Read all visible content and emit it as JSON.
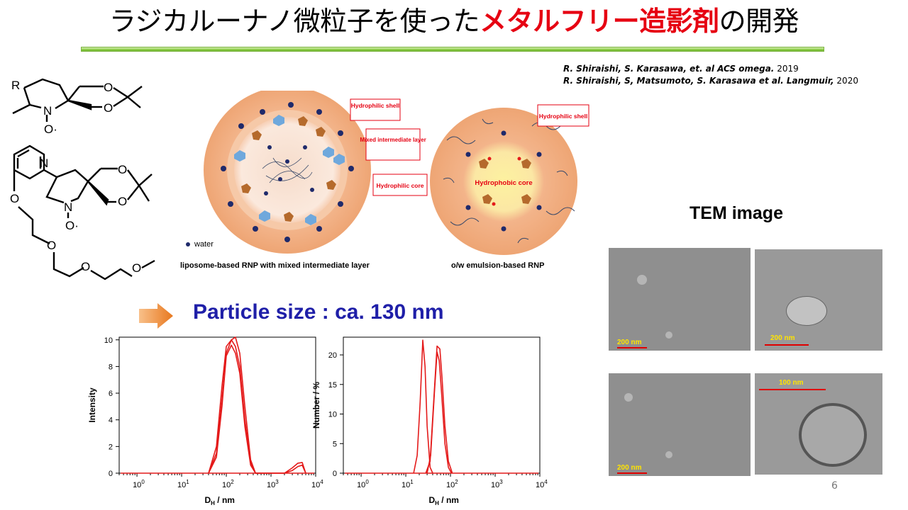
{
  "slide": {
    "title_plain": "ラジカルーナノ微粒子を使った",
    "title_highlight": "メタルフリー造影剤",
    "title_tail": "の開発",
    "page_number": "6"
  },
  "references": [
    {
      "authors": "R. Shiraishi, S. Karasawa, et. al  ACS omega.",
      "year": " 2019"
    },
    {
      "authors": "R. Shiraishi, S, Matsumoto, S. Karasawa et al. Langmuir,",
      "year": " 2020"
    }
  ],
  "structures": {
    "top_substituent": "R",
    "atom_n": "N",
    "atom_o": "O",
    "radical_oxygen": "O·"
  },
  "schematic": {
    "liposome_labels": [
      "Hydrophilic shell",
      "Mixed intermediate layer",
      "Hydrophilic core"
    ],
    "emulsion_labels": [
      "Hydrophilic shell",
      "Hydrophobic core"
    ],
    "water_legend": "water",
    "caption_left": "liposome-based RNP with mixed intermediate layer",
    "caption_right": "o/w emulsion-based RNP"
  },
  "particle_size_text": "Particle size : ca. 130 nm",
  "tem": {
    "title": "TEM image",
    "panels": [
      {
        "scale": "200 nm"
      },
      {
        "scale": "200 nm"
      },
      {
        "scale": "200 nm"
      },
      {
        "scale": "100 nm"
      }
    ]
  },
  "colors": {
    "accent_red": "#e60012",
    "particle_blue": "#1f1fa8",
    "curve_red": "#e41a1a"
  },
  "chart_data": [
    {
      "type": "line",
      "title": "",
      "xlabel": "DH / nm",
      "ylabel": "Intensity",
      "x_scale": "log",
      "xlim": [
        0.4,
        10000
      ],
      "ylim": [
        0,
        10.2
      ],
      "x_ticks": [
        "10^0",
        "10^1",
        "10^2",
        "10^3",
        "10^4"
      ],
      "y_ticks": [
        "0",
        "2",
        "4",
        "6",
        "8",
        "10"
      ],
      "series": [
        {
          "x": [
            40,
            60,
            80,
            100,
            130,
            160,
            200,
            260,
            350,
            450,
            600,
            2000,
            3000,
            4000,
            5000,
            6000
          ],
          "values": [
            0,
            1.5,
            5.5,
            9.0,
            10.0,
            10.2,
            9.0,
            5.0,
            1.0,
            0,
            0,
            0,
            0.4,
            0.75,
            0.8,
            0
          ]
        },
        {
          "x": [
            40,
            60,
            80,
            100,
            130,
            160,
            200,
            260,
            350,
            450,
            600,
            2000,
            3000,
            4000,
            5000,
            6000
          ],
          "values": [
            0,
            2.0,
            6.5,
            9.5,
            10.0,
            9.5,
            8.0,
            4.0,
            0.8,
            0,
            0,
            0,
            0.2,
            0.5,
            0.6,
            0
          ]
        },
        {
          "x": [
            40,
            60,
            80,
            100,
            130,
            160,
            200,
            260,
            350,
            450,
            600
          ],
          "values": [
            0,
            1.2,
            5.0,
            8.8,
            9.6,
            9.0,
            7.5,
            3.5,
            0.6,
            0,
            0
          ]
        }
      ]
    },
    {
      "type": "line",
      "title": "",
      "xlabel": "DH / nm",
      "ylabel": "Number / %",
      "x_scale": "log",
      "xlim": [
        0.4,
        10000
      ],
      "ylim": [
        0,
        23
      ],
      "x_ticks": [
        "10^0",
        "10^1",
        "10^2",
        "10^3",
        "10^4"
      ],
      "y_ticks": [
        "0",
        "5",
        "10",
        "15",
        "20"
      ],
      "series": [
        {
          "x": [
            15,
            18,
            21,
            24,
            27,
            30,
            35,
            40
          ],
          "values": [
            0,
            3,
            12,
            22.5,
            18,
            8,
            1,
            0
          ]
        },
        {
          "x": [
            28,
            35,
            42,
            50,
            58,
            65,
            75,
            90,
            110
          ],
          "values": [
            0,
            2,
            12,
            21.5,
            21,
            16,
            8,
            2,
            0
          ]
        },
        {
          "x": [
            30,
            36,
            44,
            50,
            56,
            64,
            75,
            90,
            105
          ],
          "values": [
            0,
            3,
            14,
            20.5,
            19,
            13,
            5,
            1,
            0
          ]
        }
      ]
    }
  ]
}
